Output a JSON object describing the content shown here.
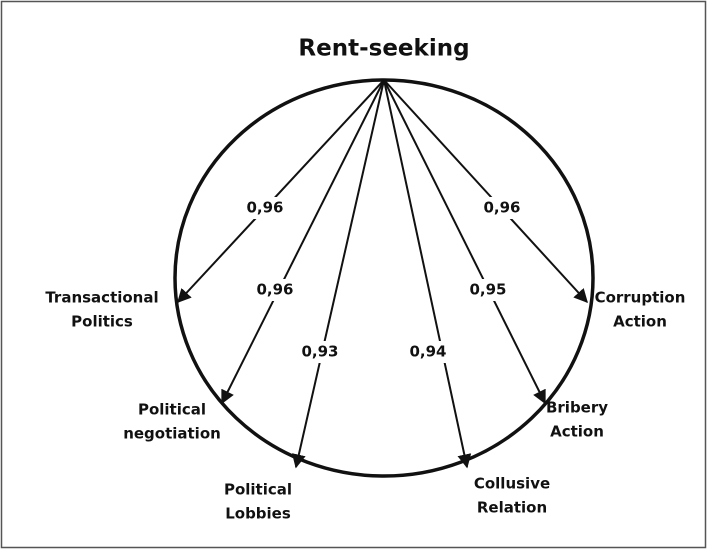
{
  "title": "Rent-seeking",
  "nodes": [
    {
      "label": [
        "Transactional",
        "Politics"
      ],
      "loading": "0,96"
    },
    {
      "label": [
        "Political",
        "negotiation"
      ],
      "loading": "0,96"
    },
    {
      "label": [
        "Political",
        "Lobbies"
      ],
      "loading": "0,93"
    },
    {
      "label": [
        "Collusive",
        "Relation"
      ],
      "loading": "0,94"
    },
    {
      "label": [
        "Bribery",
        "Action"
      ],
      "loading": "0,95"
    },
    {
      "label": [
        "Corruption",
        "Action"
      ],
      "loading": "0,96"
    }
  ]
}
